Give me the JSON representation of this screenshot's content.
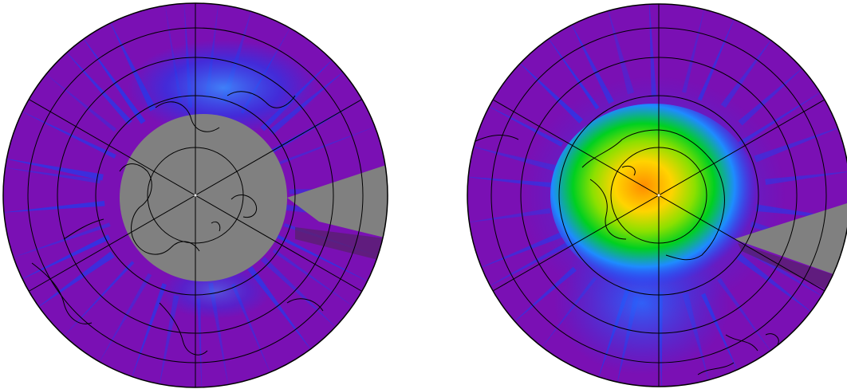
{
  "figure": {
    "panels": [
      {
        "id": "north",
        "hemisphere": "northern",
        "projection": "polar-stereographic",
        "no_data_color": "#808080",
        "background_color": "#7a10b4",
        "colormap": [
          "#7a10b4",
          "#1414e6",
          "#1e78ff",
          "#00e000",
          "#ffff00",
          "#ff8c00"
        ]
      },
      {
        "id": "south",
        "hemisphere": "southern",
        "projection": "polar-stereographic",
        "no_data_color": "#808080",
        "background_color": "#7a10b4",
        "colormap": [
          "#7a10b4",
          "#1414e6",
          "#1e78ff",
          "#00e000",
          "#ffff00",
          "#ff8c00"
        ]
      }
    ]
  }
}
